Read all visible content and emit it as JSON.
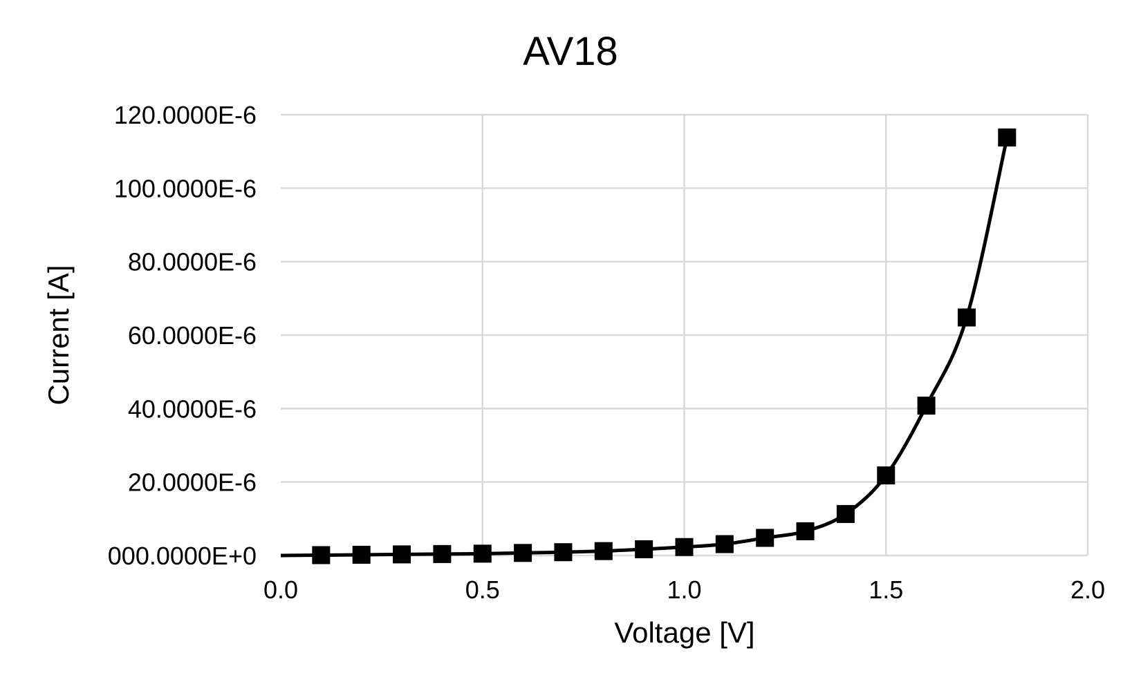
{
  "chart_data": {
    "type": "scatter",
    "title": "AV18",
    "xlabel": "Voltage [V]",
    "ylabel": "Current [A]",
    "xlim": [
      0.0,
      2.0
    ],
    "ylim": [
      0,
      0.00012
    ],
    "x_ticks": [
      0.0,
      0.5,
      1.0,
      1.5,
      2.0
    ],
    "x_tick_labels": [
      "0.0",
      "0.5",
      "1.0",
      "1.5",
      "2.0"
    ],
    "y_ticks": [
      0,
      2e-05,
      4e-05,
      6e-05,
      8e-05,
      0.0001,
      0.00012
    ],
    "y_tick_labels": [
      "000.0000E+0",
      "20.0000E-6",
      "40.0000E-6",
      "60.0000E-6",
      "80.0000E-6",
      "100.0000E-6",
      "120.0000E-6"
    ],
    "grid": true,
    "legend": "none",
    "marker": "square",
    "line": "smooth",
    "color": "#000000",
    "series": [
      {
        "x": [
          0.1,
          0.2,
          0.3,
          0.4,
          0.5,
          0.6,
          0.7,
          0.8,
          0.9,
          1.0,
          1.1,
          1.2,
          1.3,
          1.4,
          1.5,
          1.6,
          1.7,
          1.8
        ],
        "y": [
          1e-07,
          2e-07,
          3e-07,
          4e-07,
          5e-07,
          7e-07,
          9e-07,
          1.2e-06,
          1.7e-06,
          2.3e-06,
          3.1e-06,
          4.8e-06,
          6.6e-06,
          1.13e-05,
          2.18e-05,
          4.08e-05,
          6.48e-05,
          0.0001138
        ]
      }
    ]
  }
}
